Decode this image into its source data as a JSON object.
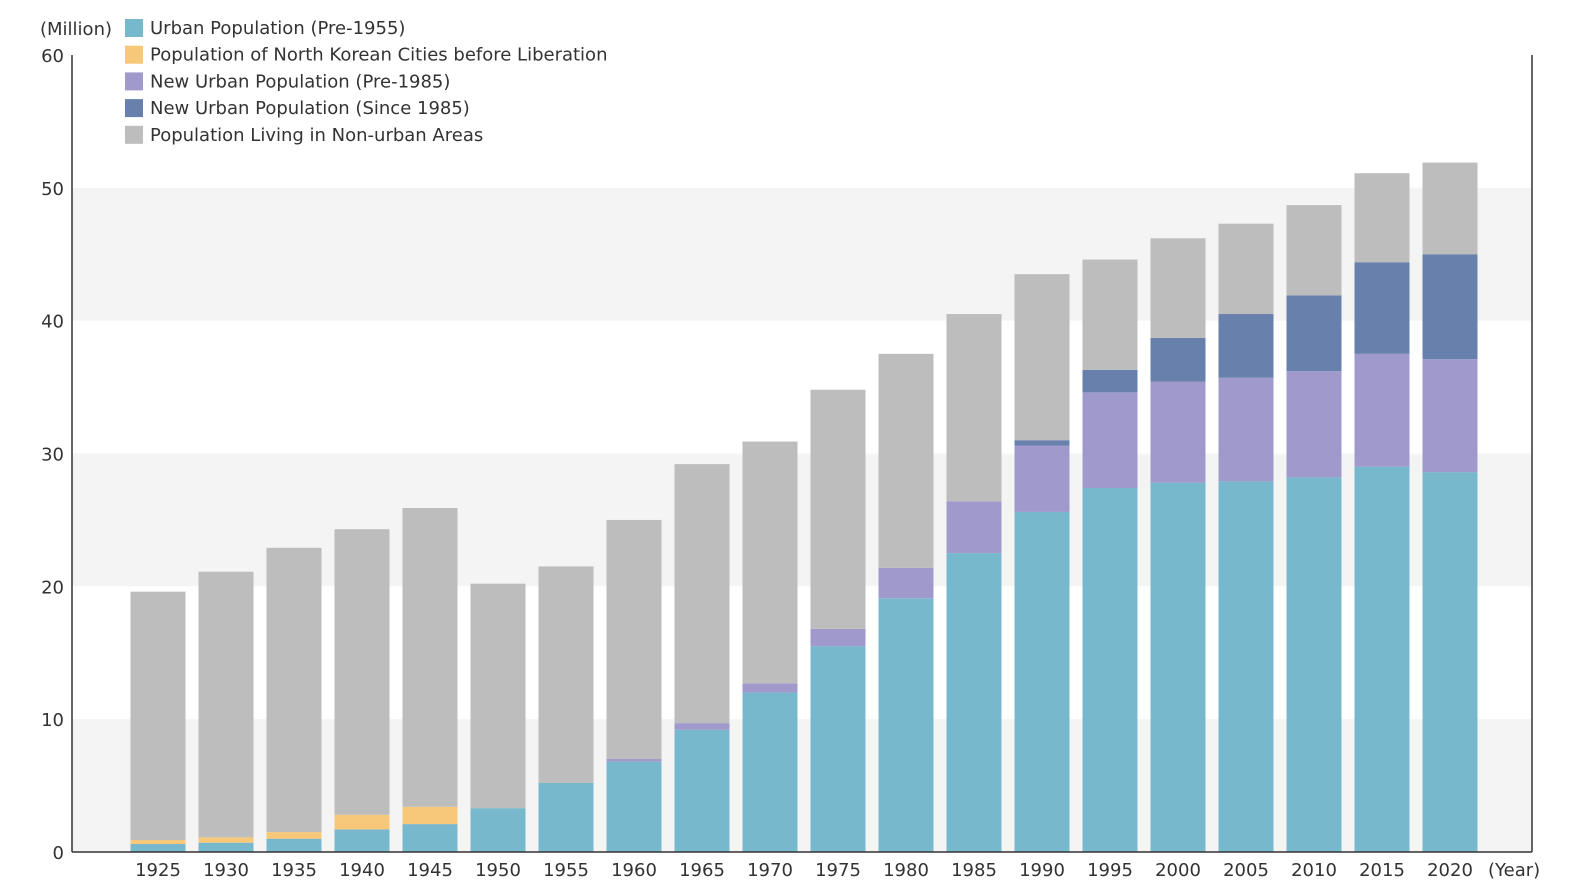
{
  "chart_data": {
    "type": "bar",
    "stacked": true,
    "ylabel": "(Million)",
    "xlabel": "(Year)",
    "ylim": [
      0,
      60
    ],
    "yticks": [
      0,
      10,
      20,
      30,
      40,
      50,
      60
    ],
    "grid": "alternating horizontal bands",
    "legend_position": "top-left",
    "categories": [
      "1925",
      "1930",
      "1935",
      "1940",
      "1945",
      "1950",
      "1955",
      "1960",
      "1965",
      "1970",
      "1975",
      "1980",
      "1985",
      "1990",
      "1995",
      "2000",
      "2005",
      "2010",
      "2015",
      "2020"
    ],
    "series": [
      {
        "name": "Urban Population (Pre-1955)",
        "color": "#78B8CC",
        "values": [
          0.6,
          0.7,
          1.0,
          1.7,
          2.1,
          3.3,
          5.2,
          6.8,
          9.2,
          12.0,
          15.5,
          19.1,
          22.5,
          25.6,
          27.4,
          27.8,
          27.9,
          28.2,
          29.0,
          28.6
        ]
      },
      {
        "name": "Population of North Korean Cities before Liberation",
        "color": "#F8C87A",
        "values": [
          0.3,
          0.4,
          0.5,
          1.1,
          1.3,
          0,
          0,
          0,
          0,
          0,
          0,
          0,
          0,
          0,
          0,
          0,
          0,
          0,
          0,
          0
        ]
      },
      {
        "name": "New Urban Population (Pre-1985)",
        "color": "#9F99CC",
        "values": [
          0,
          0,
          0,
          0,
          0,
          0,
          0,
          0.2,
          0.5,
          0.7,
          1.3,
          2.3,
          3.9,
          5.0,
          7.2,
          7.6,
          7.8,
          8.0,
          8.5,
          8.5
        ]
      },
      {
        "name": "New Urban Population (Since 1985)",
        "color": "#6880AC",
        "values": [
          0,
          0,
          0,
          0,
          0,
          0,
          0,
          0,
          0,
          0,
          0,
          0,
          0,
          0.4,
          1.7,
          3.3,
          4.8,
          5.7,
          6.9,
          7.9
        ]
      },
      {
        "name": "Population Living in Non-urban Areas",
        "color": "#BDBDBD",
        "values": [
          18.7,
          20.0,
          21.4,
          21.5,
          22.5,
          16.9,
          16.3,
          18.0,
          19.5,
          18.2,
          18.0,
          16.1,
          14.1,
          12.5,
          8.3,
          7.5,
          6.8,
          6.8,
          6.7,
          6.9
        ]
      }
    ]
  }
}
